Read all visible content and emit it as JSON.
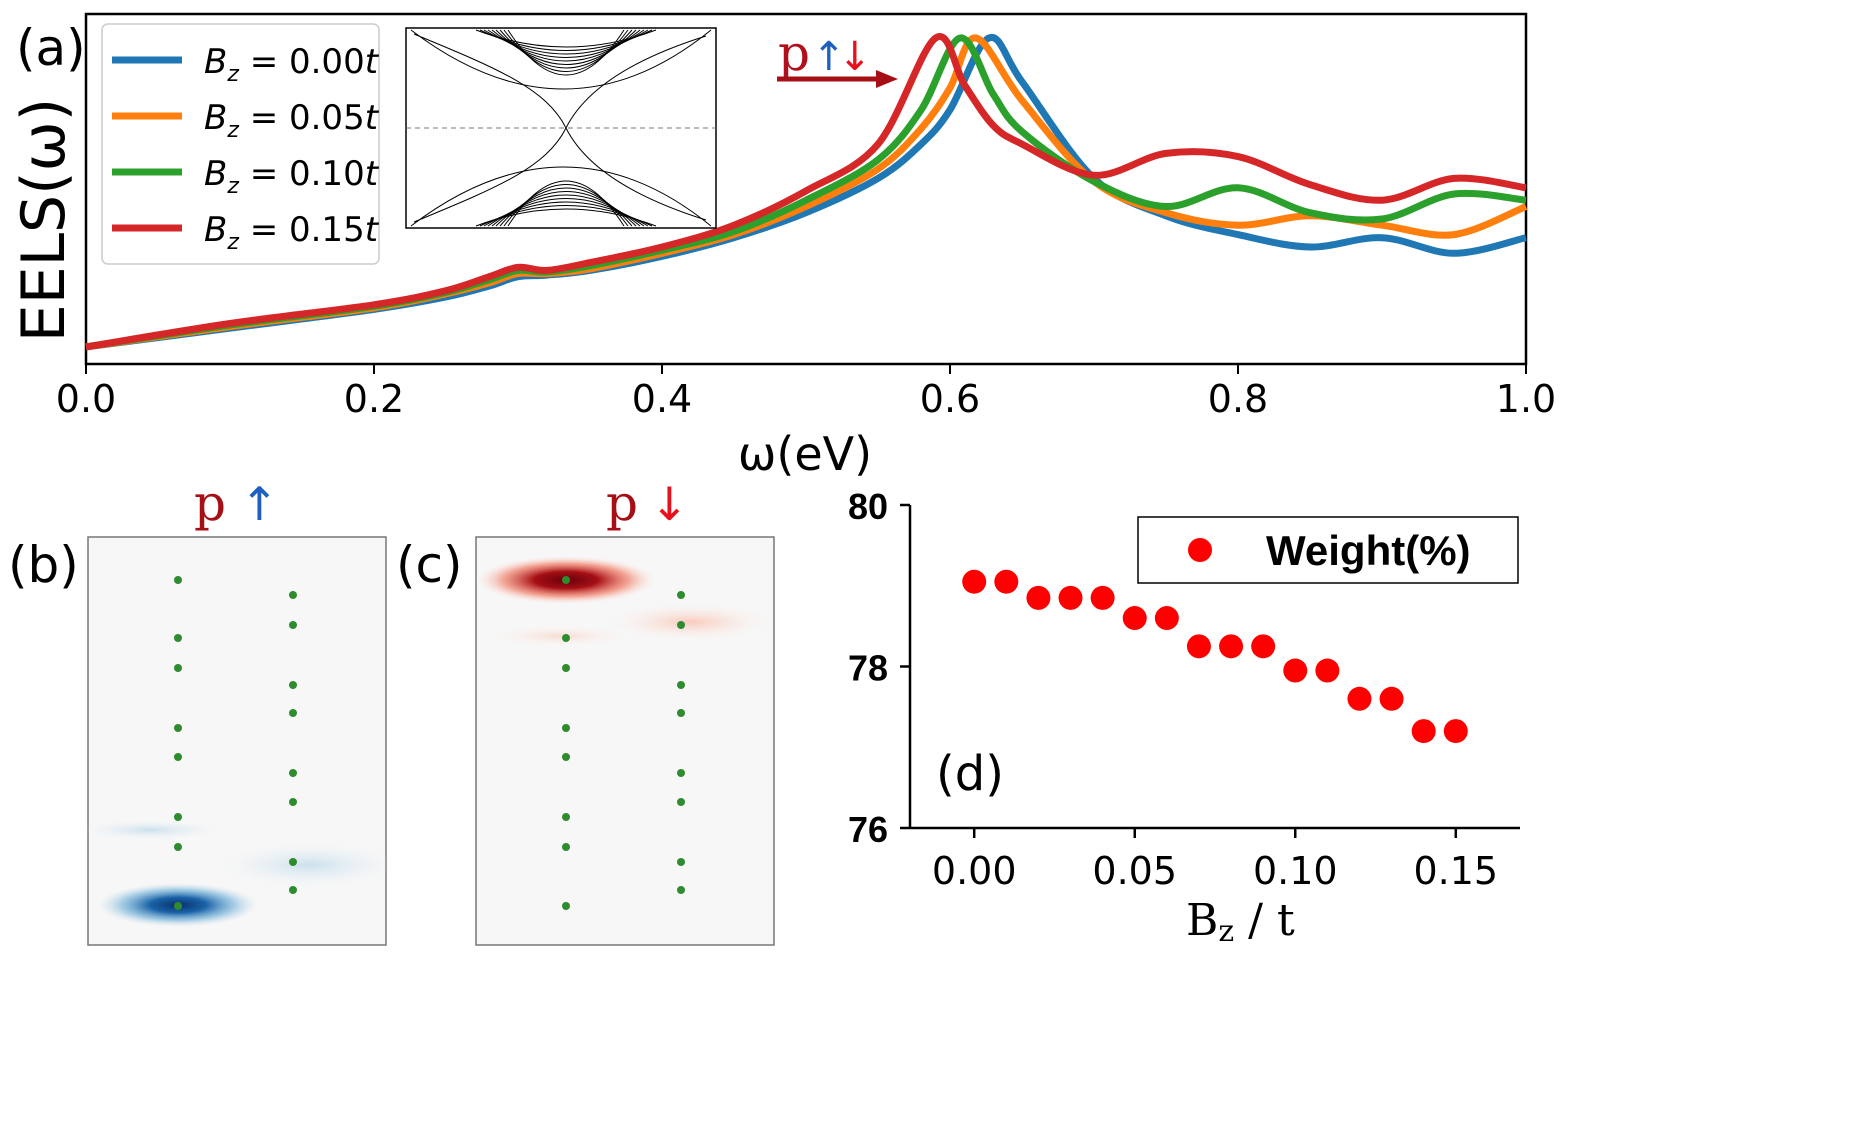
{
  "chart_data": [
    {
      "panel": "(a)",
      "type": "line",
      "ylabel": "EELS(ω)",
      "xlabel": "ω(eV)",
      "xlim": [
        0.0,
        1.0
      ],
      "x_ticks": [
        "0.0",
        "0.2",
        "0.4",
        "0.6",
        "0.8",
        "1.0"
      ],
      "annotation": {
        "p": "p",
        "up": "↑",
        "down": "↓"
      },
      "legend_position": "top-left",
      "inset": "band-structure",
      "series": [
        {
          "name": "B_z = 0.00t",
          "label_value": "0.00",
          "color": "#1f77b4",
          "peak": 0.627,
          "peak_value": 1.0,
          "x": [
            0.0,
            0.1,
            0.2,
            0.25,
            0.28,
            0.3,
            0.32,
            0.35,
            0.4,
            0.45,
            0.5,
            0.55,
            0.58,
            0.6,
            0.627,
            0.65,
            0.7,
            0.75,
            0.8,
            0.85,
            0.9,
            0.95,
            1.0
          ],
          "values": [
            0.01,
            0.07,
            0.13,
            0.17,
            0.205,
            0.235,
            0.24,
            0.255,
            0.3,
            0.36,
            0.44,
            0.55,
            0.66,
            0.77,
            1.0,
            0.86,
            0.55,
            0.43,
            0.37,
            0.33,
            0.36,
            0.31,
            0.36
          ]
        },
        {
          "name": "B_z = 0.05t",
          "label_value": "0.05",
          "color": "#ff7f0e",
          "peak": 0.618,
          "peak_value": 1.0,
          "x": [
            0.0,
            0.1,
            0.2,
            0.25,
            0.28,
            0.3,
            0.32,
            0.35,
            0.4,
            0.45,
            0.5,
            0.55,
            0.58,
            0.6,
            0.618,
            0.65,
            0.7,
            0.75,
            0.8,
            0.85,
            0.9,
            0.95,
            1.0
          ],
          "values": [
            0.01,
            0.075,
            0.135,
            0.18,
            0.215,
            0.245,
            0.245,
            0.26,
            0.31,
            0.37,
            0.46,
            0.58,
            0.71,
            0.84,
            1.0,
            0.8,
            0.54,
            0.44,
            0.4,
            0.43,
            0.4,
            0.37,
            0.46
          ]
        },
        {
          "name": "B_z = 0.10t",
          "label_value": "0.10",
          "color": "#2ca02c",
          "peak": 0.607,
          "peak_value": 1.0,
          "x": [
            0.0,
            0.1,
            0.2,
            0.25,
            0.28,
            0.3,
            0.32,
            0.35,
            0.4,
            0.45,
            0.5,
            0.55,
            0.58,
            0.607,
            0.63,
            0.65,
            0.7,
            0.75,
            0.8,
            0.85,
            0.9,
            0.95,
            1.0
          ],
          "values": [
            0.01,
            0.08,
            0.14,
            0.185,
            0.225,
            0.255,
            0.25,
            0.27,
            0.32,
            0.38,
            0.48,
            0.61,
            0.77,
            1.0,
            0.82,
            0.7,
            0.54,
            0.46,
            0.52,
            0.44,
            0.42,
            0.5,
            0.48
          ]
        },
        {
          "name": "B_z = 0.15t",
          "label_value": "0.15",
          "color": "#d62728",
          "peak": 0.59,
          "peak_value": 1.0,
          "x": [
            0.0,
            0.1,
            0.2,
            0.25,
            0.28,
            0.3,
            0.32,
            0.35,
            0.4,
            0.45,
            0.5,
            0.55,
            0.59,
            0.61,
            0.63,
            0.65,
            0.7,
            0.75,
            0.8,
            0.85,
            0.9,
            0.95,
            1.0
          ],
          "values": [
            0.01,
            0.085,
            0.145,
            0.19,
            0.235,
            0.265,
            0.255,
            0.28,
            0.33,
            0.4,
            0.51,
            0.66,
            1.0,
            0.85,
            0.72,
            0.66,
            0.56,
            0.63,
            0.62,
            0.53,
            0.48,
            0.55,
            0.52
          ]
        }
      ]
    },
    {
      "panel": "(b)",
      "type": "heatmap",
      "title": {
        "p": "p",
        "arrow": "↑"
      },
      "colormap": "blue",
      "hotspot": "bottom-left site"
    },
    {
      "panel": "(c)",
      "type": "heatmap",
      "title": {
        "p": "p",
        "arrow": "↓"
      },
      "colormap": "red",
      "hotspot": "top-left site"
    },
    {
      "panel": "(d)",
      "type": "scatter",
      "legend": "Weight(%)",
      "xlabel": "B",
      "xlabel_sub": "z",
      "xlabel_suffix": " / t",
      "ylim": [
        76,
        80
      ],
      "xlim": [
        -0.02,
        0.17
      ],
      "y_ticks": [
        "76",
        "78",
        "80"
      ],
      "x_ticks": [
        "0.00",
        "0.05",
        "0.10",
        "0.15"
      ],
      "color": "#ff0000",
      "x": [
        0.0,
        0.01,
        0.02,
        0.03,
        0.04,
        0.05,
        0.06,
        0.07,
        0.08,
        0.09,
        0.1,
        0.11,
        0.12,
        0.13,
        0.14,
        0.15
      ],
      "values": [
        79.05,
        79.05,
        78.85,
        78.85,
        78.85,
        78.6,
        78.6,
        78.25,
        78.25,
        78.25,
        77.95,
        77.95,
        77.6,
        77.6,
        77.2,
        77.2
      ]
    }
  ],
  "labels": {
    "a": "(a)",
    "b": "(b)",
    "c": "(c)",
    "d": "(d)",
    "bz_prefix": "B",
    "bz_sub": "z",
    "bz_eq": " = ",
    "bz_suffix": "t"
  }
}
